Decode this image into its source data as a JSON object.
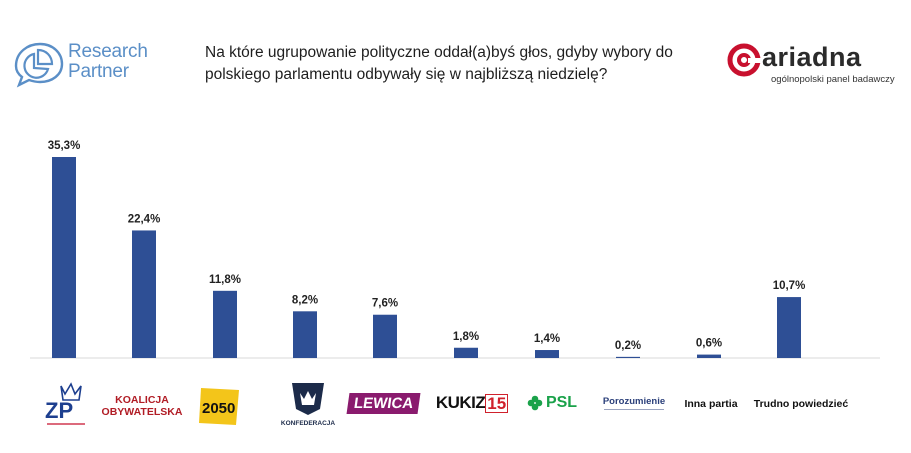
{
  "header": {
    "left_logo": {
      "text": "Research Partner",
      "line1": "Research",
      "line2": "Partner",
      "icon": "speech-bubble-pie-icon",
      "color": "#5b8fc7"
    },
    "question": "Na które ugrupowanie polityczne oddał(a)byś głos, gdyby wybory do polskiego parlamentu odbywały się w najbliższą niedzielę?",
    "right_logo": {
      "brand": "ariadna",
      "tagline": "ogólnopolski panel badawczy",
      "icon": "ariadna-spiral-icon",
      "accent": "#c8102e"
    }
  },
  "chart_data": {
    "type": "bar",
    "categories": [
      "ZP",
      "KOALICJA OBYWATELSKA",
      "2050",
      "KONFEDERACJA",
      "LEWICA",
      "KUKIZ15",
      "PSL",
      "Porozumienie",
      "Inna partia",
      "Trudno powiedzieć"
    ],
    "values": [
      35.3,
      22.4,
      11.8,
      8.2,
      7.6,
      1.8,
      1.4,
      0.2,
      0.6,
      10.7
    ],
    "value_labels": [
      "35,3%",
      "22,4%",
      "11,8%",
      "8,2%",
      "7,6%",
      "1,8%",
      "1,4%",
      "0,2%",
      "0,6%",
      "10,7%"
    ],
    "bar_color": "#2e4f95",
    "ylim": [
      0,
      36
    ],
    "grid": false,
    "legend": "none"
  },
  "party_logos": [
    {
      "name": "zp",
      "text": "ZP",
      "icon": "zp-crown-logo-icon",
      "color": "#1d3f8f"
    },
    {
      "name": "ko",
      "line1": "KOALICJA",
      "line2": "OBYWATELSKA",
      "color": "#b11c25"
    },
    {
      "name": "pl2050",
      "text": "2050",
      "color": "#f3c51a"
    },
    {
      "name": "konfederacja",
      "text": "KONFEDERACJA",
      "icon": "konfederacja-crown-logo-icon",
      "color": "#1c2b4a"
    },
    {
      "name": "lewica",
      "text": "LEWICA",
      "color": "#8a1b6e"
    },
    {
      "name": "kukiz",
      "text": "KUKIZ",
      "num": "15",
      "color": "#111111",
      "accent": "#d0212c"
    },
    {
      "name": "psl",
      "text": "PSL",
      "icon": "clover-icon",
      "color": "#1aa24a"
    },
    {
      "name": "porozumienie",
      "text": "Porozumienie",
      "color": "#2a3f7a"
    },
    {
      "name": "inna",
      "text": "Inna partia"
    },
    {
      "name": "trudno",
      "text": "Trudno powiedzieć"
    }
  ]
}
